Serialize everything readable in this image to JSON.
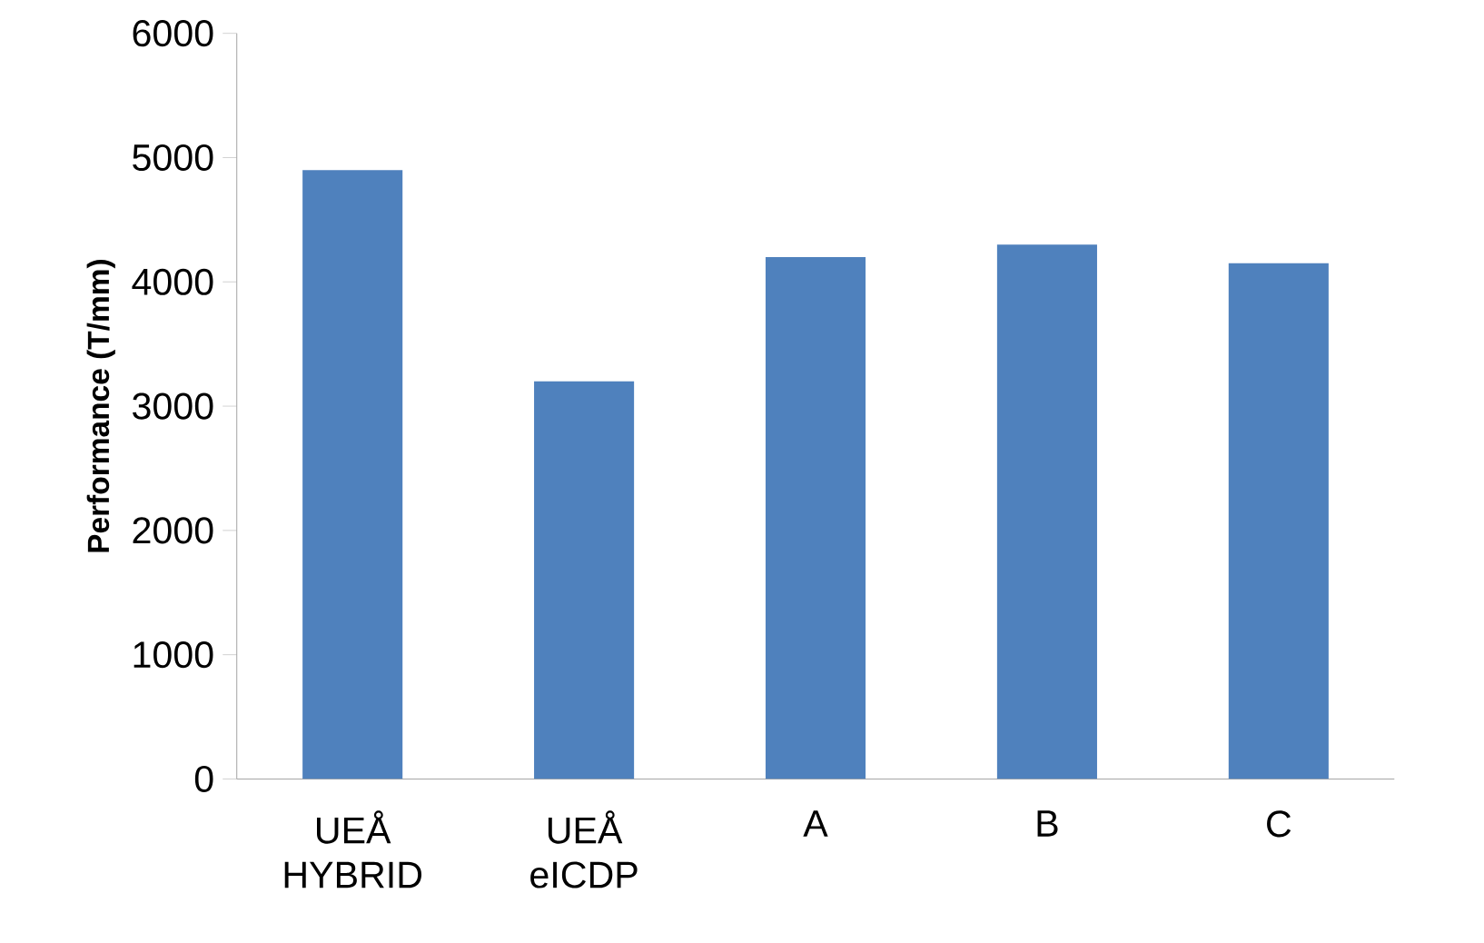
{
  "chart_data": {
    "type": "bar",
    "ylabel": "Performance (T/mm)",
    "categories": [
      "UEÅ HYBRID",
      "UEÅ eICDP",
      "A",
      "B",
      "C"
    ],
    "values": [
      4900,
      3200,
      4200,
      4300,
      4150
    ],
    "color": "#4f81bd",
    "ylim": [
      0,
      6000
    ],
    "yticks": [
      0,
      1000,
      2000,
      3000,
      4000,
      5000,
      6000
    ]
  }
}
